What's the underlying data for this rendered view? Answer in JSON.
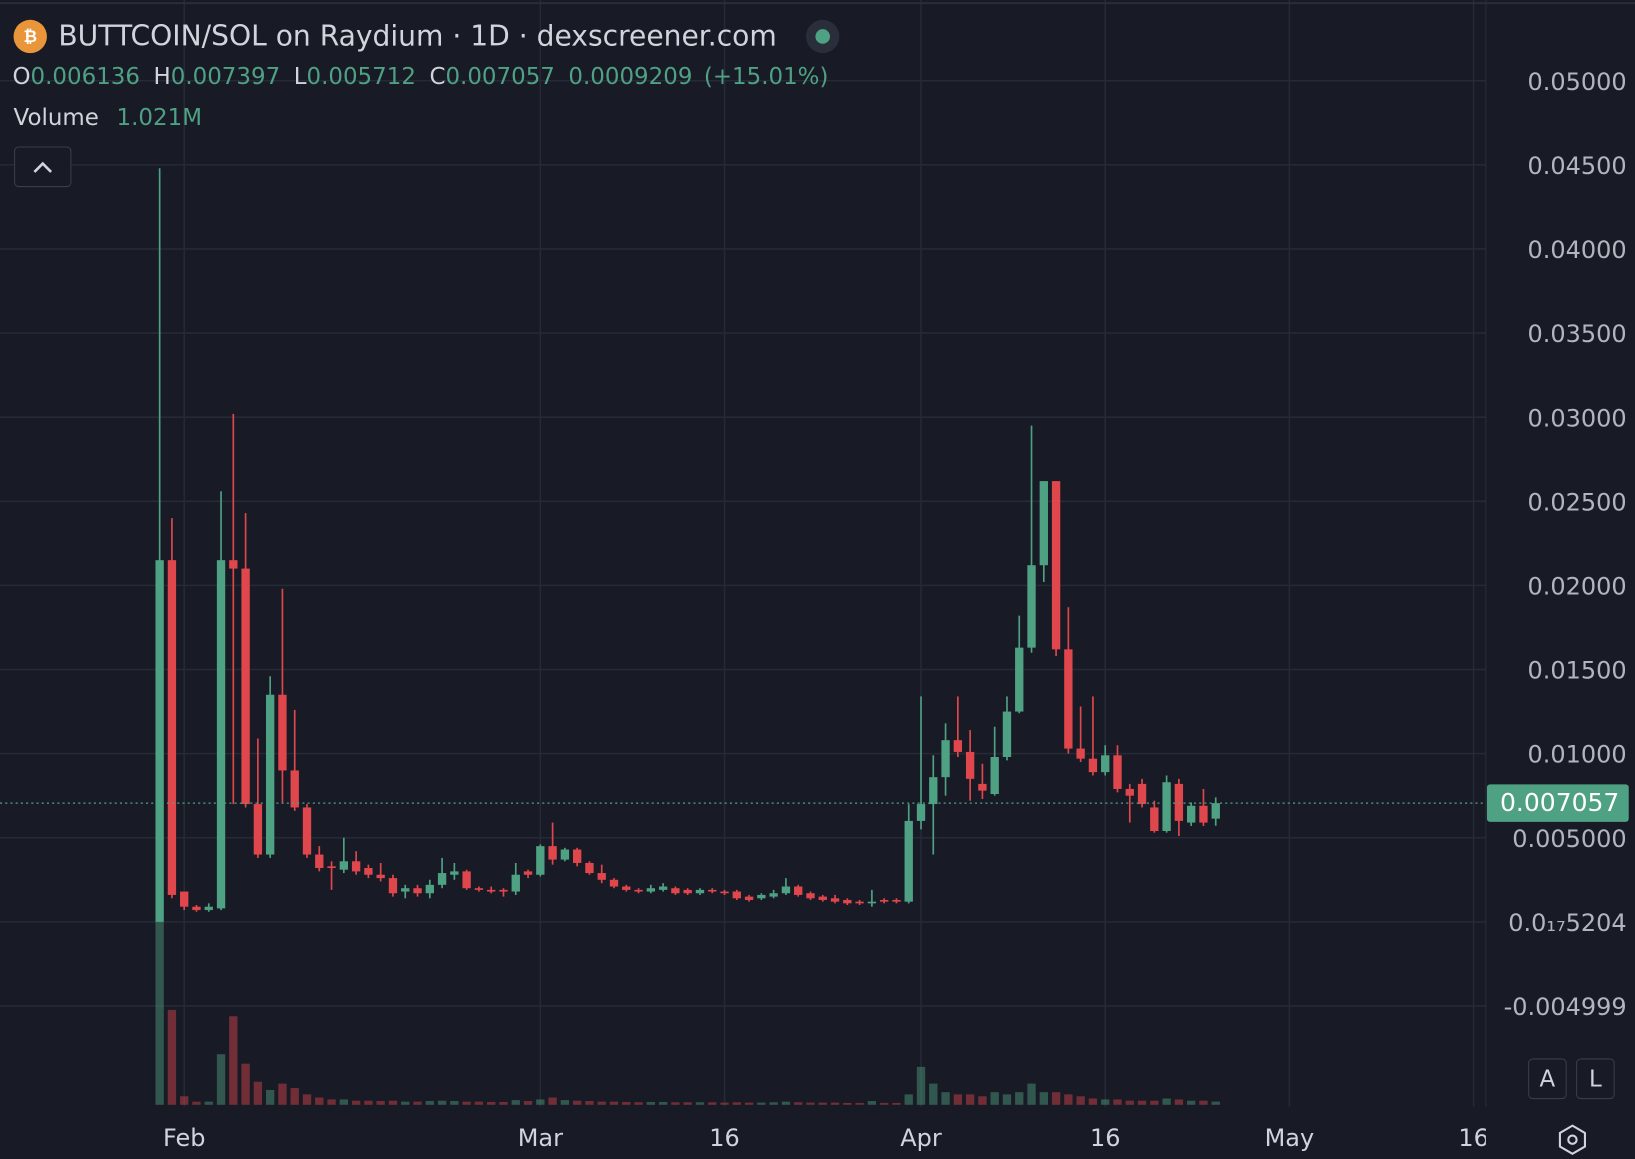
{
  "chart_data": {
    "type": "candlestick",
    "title": "BUTTCOIN/SOL on Raydium · 1D · dexscreener.com",
    "ohlc_labels": [
      "O",
      "H",
      "L",
      "C"
    ],
    "change": "0.0009209",
    "change_pct": "(+15.01%)",
    "volume_title": "Volume",
    "volume_label": "1.021M",
    "scale_buttons": [
      "A",
      "L"
    ],
    "up_color": "#4fa183",
    "down_color": "#e0474c",
    "grid": true,
    "x": [
      "01-30",
      "01-31",
      "02-01",
      "02-02",
      "02-03",
      "02-04",
      "02-05",
      "02-06",
      "02-07",
      "02-08",
      "02-09",
      "02-10",
      "02-11",
      "02-12",
      "02-13",
      "02-14",
      "02-15",
      "02-16",
      "02-17",
      "02-18",
      "02-19",
      "02-20",
      "02-21",
      "02-22",
      "02-23",
      "02-24",
      "02-25",
      "02-26",
      "02-27",
      "02-28",
      "02-29",
      "03-01",
      "03-02",
      "03-03",
      "03-04",
      "03-05",
      "03-06",
      "03-07",
      "03-08",
      "03-09",
      "03-10",
      "03-11",
      "03-12",
      "03-13",
      "03-14",
      "03-15",
      "03-16",
      "03-17",
      "03-18",
      "03-19",
      "03-20",
      "03-21",
      "03-22",
      "03-23",
      "03-24",
      "03-25",
      "03-26",
      "03-27",
      "03-28",
      "03-29",
      "03-30",
      "03-31",
      "04-01",
      "04-02",
      "04-03",
      "04-04",
      "04-05",
      "04-06",
      "04-07",
      "04-08",
      "04-09",
      "04-10",
      "04-11",
      "04-12",
      "04-13",
      "04-14",
      "04-15",
      "04-16",
      "04-17",
      "04-18",
      "04-19",
      "04-20",
      "04-21",
      "04-22",
      "04-23",
      "04-24",
      "04-25"
    ],
    "open": [
      0,
      0.0215,
      0.0018,
      0.0009,
      0.0007,
      0.0008,
      0.0215,
      0.021,
      0.007,
      0.004,
      0.0135,
      0.009,
      0.0068,
      0.004,
      0.0033,
      0.0031,
      0.0036,
      0.0032,
      0.0028,
      0.0026,
      0.0018,
      0.002,
      0.0017,
      0.0022,
      0.0028,
      0.003,
      0.002,
      0.0019,
      0.0019,
      0.0018,
      0.003,
      0.0028,
      0.0045,
      0.0037,
      0.0043,
      0.0035,
      0.0029,
      0.0025,
      0.0021,
      0.0019,
      0.0018,
      0.0019,
      0.002,
      0.0019,
      0.0017,
      0.0019,
      0.0018,
      0.0018,
      0.0015,
      0.0014,
      0.0015,
      0.0017,
      0.0021,
      0.0017,
      0.0015,
      0.0014,
      0.0013,
      0.0012,
      0.0011,
      0.0013,
      0.0013,
      0.0012,
      0.006,
      0.007,
      0.0086,
      0.0108,
      0.0101,
      0.0082,
      0.0076,
      0.0098,
      0.0125,
      0.0163,
      0.0212,
      0.0262,
      0.0162,
      0.0103,
      0.0097,
      0.0089,
      0.0099,
      0.0079,
      0.0082,
      0.0068,
      0.0054,
      0.0082,
      0.0059,
      0.0069,
      0.006136
    ],
    "high": [
      0.0448,
      0.024,
      0.0018,
      0.001,
      0.0011,
      0.0256,
      0.0302,
      0.0243,
      0.0109,
      0.0146,
      0.0198,
      0.0126,
      0.007,
      0.0045,
      0.0036,
      0.005,
      0.0042,
      0.0034,
      0.0035,
      0.0028,
      0.0022,
      0.0022,
      0.0025,
      0.0038,
      0.0035,
      0.0031,
      0.0021,
      0.0021,
      0.002,
      0.0035,
      0.0031,
      0.0046,
      0.0059,
      0.0044,
      0.0044,
      0.0036,
      0.0034,
      0.0026,
      0.0022,
      0.002,
      0.0022,
      0.0023,
      0.0021,
      0.002,
      0.002,
      0.002,
      0.0019,
      0.0019,
      0.0016,
      0.0017,
      0.0019,
      0.0026,
      0.0022,
      0.0018,
      0.0016,
      0.0016,
      0.0014,
      0.0013,
      0.0019,
      0.0014,
      0.0014,
      0.007,
      0.0134,
      0.0099,
      0.0118,
      0.0134,
      0.0114,
      0.0094,
      0.0116,
      0.0134,
      0.0182,
      0.0295,
      0.0262,
      0.0262,
      0.0187,
      0.0128,
      0.0134,
      0.0105,
      0.0105,
      0.0082,
      0.0085,
      0.0072,
      0.0087,
      0.0085,
      0.0071,
      0.0079,
      0.007397
    ],
    "low": [
      0,
      0.0014,
      0.0007,
      0.0006,
      0.0006,
      0.0007,
      0.007,
      0.0068,
      0.0038,
      0.0038,
      0.0071,
      0.0066,
      0.0038,
      0.003,
      0.0019,
      0.0029,
      0.0028,
      0.0026,
      0.0024,
      0.0015,
      0.0014,
      0.0015,
      0.0014,
      0.002,
      0.0025,
      0.0019,
      0.0018,
      0.0017,
      0.0015,
      0.0016,
      0.0026,
      0.0027,
      0.0034,
      0.0036,
      0.0033,
      0.0028,
      0.0023,
      0.002,
      0.0018,
      0.0017,
      0.0017,
      0.0018,
      0.0016,
      0.0016,
      0.0016,
      0.0017,
      0.0016,
      0.0013,
      0.0012,
      0.0013,
      0.0014,
      0.0016,
      0.0015,
      0.0013,
      0.0012,
      0.0011,
      0.001,
      0.001,
      0.0009,
      0.0011,
      0.0011,
      0.0011,
      0.0055,
      0.004,
      0.0075,
      0.0098,
      0.0072,
      0.0073,
      0.0075,
      0.0096,
      0.0124,
      0.016,
      0.0202,
      0.0158,
      0.01,
      0.0095,
      0.0087,
      0.0087,
      0.0077,
      0.0059,
      0.0068,
      0.0053,
      0.0053,
      0.0051,
      0.0057,
      0.0057,
      0.005712
    ],
    "close": [
      0.0215,
      0.0016,
      0.0009,
      0.0007,
      0.0009,
      0.0215,
      0.021,
      0.007,
      0.004,
      0.0135,
      0.009,
      0.0068,
      0.004,
      0.0032,
      0.0032,
      0.0036,
      0.003,
      0.0028,
      0.0026,
      0.0017,
      0.002,
      0.0017,
      0.0022,
      0.0029,
      0.003,
      0.002,
      0.0019,
      0.0018,
      0.0018,
      0.0028,
      0.0028,
      0.0045,
      0.0037,
      0.0043,
      0.0035,
      0.0029,
      0.0025,
      0.0021,
      0.0019,
      0.0018,
      0.002,
      0.0021,
      0.0017,
      0.0017,
      0.0019,
      0.0018,
      0.0017,
      0.0014,
      0.0013,
      0.0016,
      0.0017,
      0.0021,
      0.0016,
      0.0014,
      0.0013,
      0.0012,
      0.0011,
      0.0011,
      0.0012,
      0.0012,
      0.0012,
      0.006,
      0.007,
      0.0086,
      0.0108,
      0.0101,
      0.0085,
      0.0078,
      0.0098,
      0.0125,
      0.0163,
      0.0212,
      0.0262,
      0.0162,
      0.0103,
      0.0097,
      0.0089,
      0.0099,
      0.0079,
      0.0075,
      0.007,
      0.0054,
      0.0083,
      0.006,
      0.0069,
      0.0059,
      0.007057
    ],
    "volume": [
      58,
      30,
      2.7,
      1,
      1,
      16,
      28,
      13,
      7.3,
      4.7,
      6.7,
      5.3,
      3.3,
      2.3,
      1.7,
      1.7,
      1.3,
      1.3,
      1.2,
      1.3,
      1,
      1,
      1.2,
      1.3,
      1.2,
      1,
      1,
      0.9,
      0.9,
      1.5,
      1.2,
      1.7,
      2.3,
      1.5,
      1.3,
      1.2,
      1,
      1,
      0.9,
      0.8,
      0.9,
      0.9,
      0.8,
      0.8,
      0.8,
      0.8,
      0.7,
      0.8,
      0.7,
      0.7,
      0.8,
      1,
      0.8,
      0.7,
      0.7,
      0.7,
      0.6,
      0.6,
      1.2,
      0.6,
      0.6,
      3.3,
      12,
      6.7,
      4,
      3.3,
      3.3,
      2.7,
      4,
      3.3,
      4,
      6.7,
      4,
      4,
      3.3,
      2.7,
      2,
      1.7,
      1.7,
      1.3,
      1.3,
      1.3,
      2,
      1.7,
      1.3,
      1.3,
      1.021
    ],
    "xlim": [
      "01-17",
      "05-17"
    ],
    "xticks": [
      {
        "value": "02-01",
        "label": "Feb"
      },
      {
        "value": "03-01",
        "label": "Mar"
      },
      {
        "value": "03-16",
        "label": "16"
      },
      {
        "value": "04-01",
        "label": "Apr"
      },
      {
        "value": "04-16",
        "label": "16"
      },
      {
        "value": "05-01",
        "label": "May"
      },
      {
        "value": "05-16",
        "label": "16"
      }
    ],
    "ylim": [
      -0.011,
      0.0548
    ],
    "yticks": [
      {
        "value": 0.05,
        "label": "0.05000"
      },
      {
        "value": 0.045,
        "label": "0.04500"
      },
      {
        "value": 0.04,
        "label": "0.04000"
      },
      {
        "value": 0.035,
        "label": "0.03500"
      },
      {
        "value": 0.03,
        "label": "0.03000"
      },
      {
        "value": 0.025,
        "label": "0.02500"
      },
      {
        "value": 0.02,
        "label": "0.02000"
      },
      {
        "value": 0.015,
        "label": "0.01500"
      },
      {
        "value": 0.01,
        "label": "0.01000"
      },
      {
        "value": 0.005,
        "label": "0.005000"
      },
      {
        "value": 5.204e-18,
        "label": "0.0₁₇5204"
      },
      -0.004999
    ]
  }
}
